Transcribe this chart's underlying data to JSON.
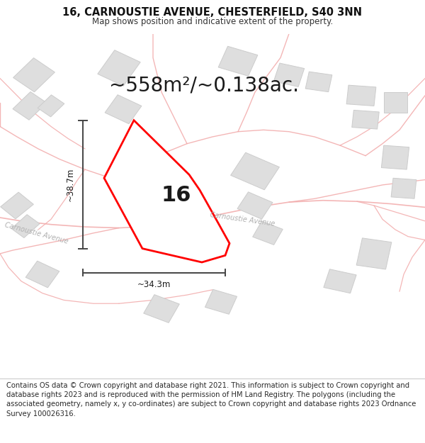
{
  "title": "16, CARNOUSTIE AVENUE, CHESTERFIELD, S40 3NN",
  "subtitle": "Map shows position and indicative extent of the property.",
  "area_label": "~558m²/~0.138ac.",
  "property_number": "16",
  "dim_vertical": "~38.7m",
  "dim_horizontal": "~34.3m",
  "footer": "Contains OS data © Crown copyright and database right 2021. This information is subject to Crown copyright and database rights 2023 and is reproduced with the permission of HM Land Registry. The polygons (including the associated geometry, namely x, y co-ordinates) are subject to Crown copyright and database rights 2023 Ordnance Survey 100026316.",
  "bg_color": "#f7f6f6",
  "road_color": "#f2aaaa",
  "building_color": "#dedede",
  "building_stroke": "#cccccc",
  "plot_color": "#ffffff",
  "plot_stroke": "#ff0000",
  "dim_line_color": "#444444",
  "road_label_color": "#b0b0b0",
  "title_fontsize": 10.5,
  "subtitle_fontsize": 8.5,
  "area_fontsize": 20,
  "number_fontsize": 22,
  "footer_fontsize": 7.2,
  "figsize": [
    6.0,
    6.25
  ],
  "dpi": 100
}
